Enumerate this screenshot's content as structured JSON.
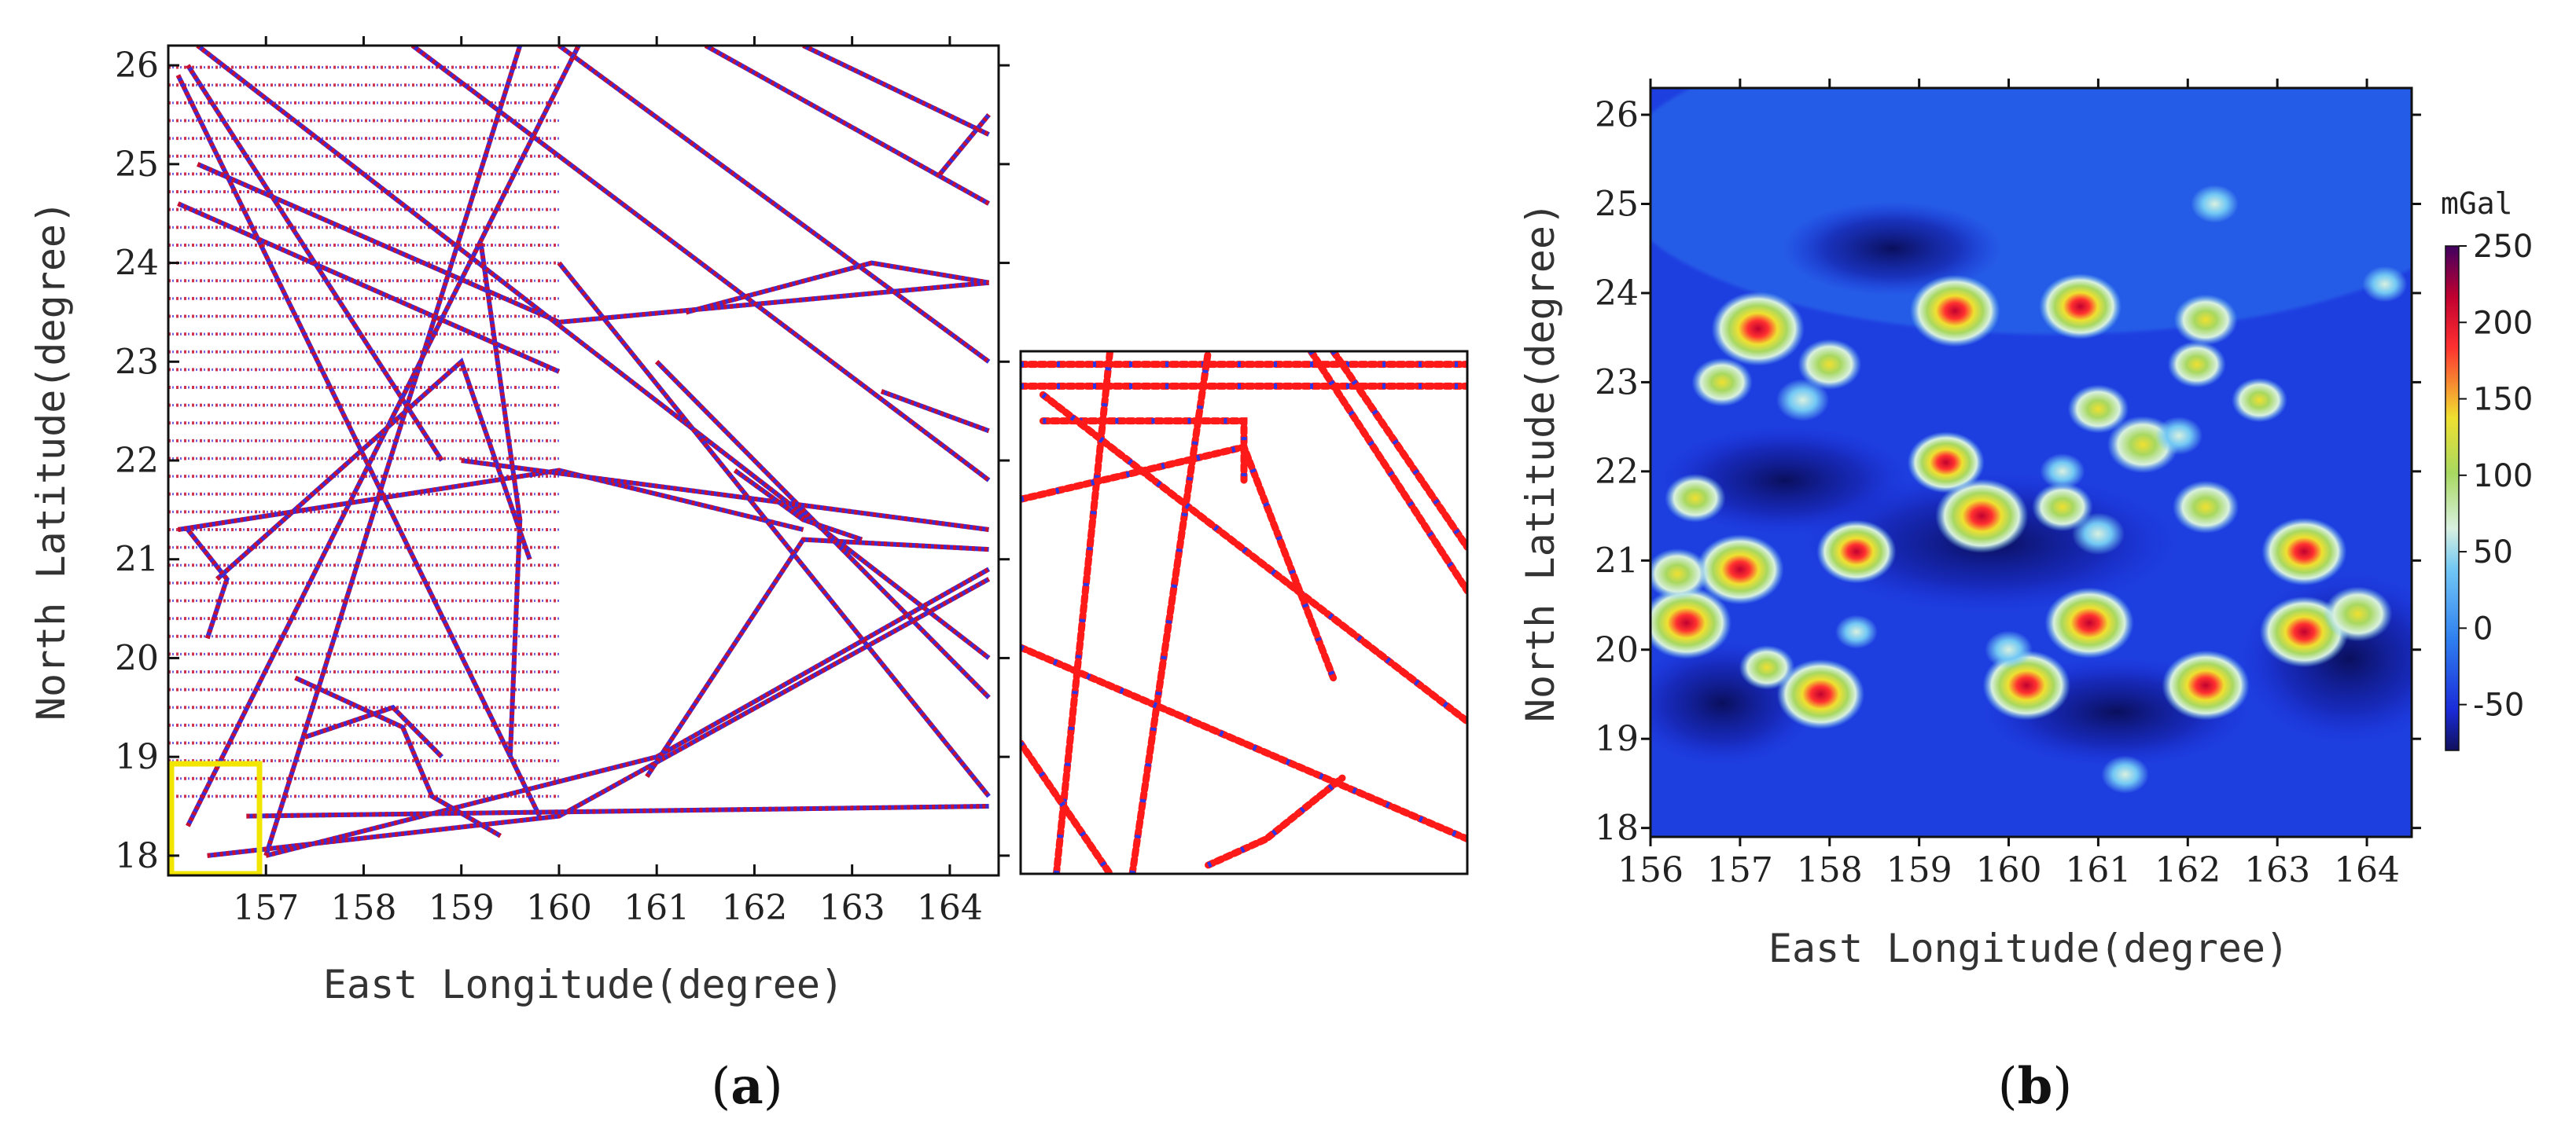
{
  "chart_data": [
    {
      "panel": "a",
      "panel_label_open": "(",
      "panel_label_letter": "a",
      "panel_label_close": ")",
      "type": "scatter",
      "xlabel": "East Longitude(degree)",
      "ylabel": "North Latitude(degree)",
      "xlim": [
        156.0,
        164.5
      ],
      "ylim": [
        17.8,
        26.2
      ],
      "xticks": [
        157,
        158,
        159,
        160,
        161,
        162,
        163,
        164
      ],
      "yticks": [
        18,
        19,
        20,
        21,
        22,
        23,
        24,
        25,
        26
      ],
      "grid": false,
      "colors": {
        "track": "#c8102e",
        "track_star": "#3b2bd6",
        "highlight": "#f2e600"
      },
      "series": [
        {
          "values": [
            [
              156.1,
              25.9
            ],
            [
              159.8,
              18.4
            ]
          ]
        },
        {
          "values": [
            [
              156.2,
              18.3
            ],
            [
              160.2,
              26.2
            ]
          ]
        },
        {
          "values": [
            [
              157.0,
              18.0
            ],
            [
              159.6,
              26.2
            ]
          ]
        },
        {
          "values": [
            [
              156.1,
              24.6
            ],
            [
              160.0,
              22.9
            ]
          ]
        },
        {
          "values": [
            [
              156.2,
              26.0
            ],
            [
              158.8,
              22.0
            ]
          ]
        },
        {
          "values": [
            [
              156.5,
              20.8
            ],
            [
              159.0,
              23.0
            ],
            [
              159.7,
              21.0
            ]
          ]
        },
        {
          "values": [
            [
              156.3,
              25.0
            ],
            [
              160.0,
              23.4
            ],
            [
              164.4,
              23.8
            ]
          ]
        },
        {
          "values": [
            [
              159.2,
              24.2
            ],
            [
              159.6,
              21.4
            ],
            [
              159.5,
              19.0
            ]
          ]
        },
        {
          "values": [
            [
              157.3,
              19.8
            ],
            [
              158.4,
              19.3
            ],
            [
              158.7,
              18.6
            ],
            [
              159.4,
              18.2
            ]
          ]
        },
        {
          "values": [
            [
              156.4,
              18.0
            ],
            [
              160.0,
              18.4
            ],
            [
              164.4,
              20.8
            ]
          ]
        },
        {
          "values": [
            [
              157.0,
              18.0
            ],
            [
              161.0,
              19.0
            ],
            [
              164.4,
              20.9
            ]
          ]
        },
        {
          "values": [
            [
              160.9,
              18.8
            ],
            [
              162.5,
              21.2
            ],
            [
              164.4,
              21.1
            ]
          ]
        },
        {
          "values": [
            [
              161.3,
              23.5
            ],
            [
              163.2,
              24.0
            ],
            [
              164.4,
              23.8
            ]
          ]
        },
        {
          "values": [
            [
              156.3,
              26.2
            ],
            [
              164.4,
              20.0
            ]
          ]
        },
        {
          "values": [
            [
              158.5,
              26.2
            ],
            [
              164.4,
              21.8
            ]
          ]
        },
        {
          "values": [
            [
              160.0,
              26.2
            ],
            [
              164.4,
              23.0
            ]
          ]
        },
        {
          "values": [
            [
              161.5,
              26.2
            ],
            [
              164.4,
              24.6
            ]
          ]
        },
        {
          "values": [
            [
              162.5,
              26.2
            ],
            [
              164.4,
              25.3
            ]
          ]
        },
        {
          "values": [
            [
              156.1,
              21.3
            ],
            [
              160.0,
              21.9
            ],
            [
              162.5,
              21.3
            ]
          ]
        },
        {
          "values": [
            [
              160.0,
              24.0
            ],
            [
              164.4,
              18.6
            ]
          ]
        },
        {
          "values": [
            [
              161.0,
              23.0
            ],
            [
              164.4,
              19.6
            ]
          ]
        },
        {
          "values": [
            [
              159.0,
              22.0
            ],
            [
              164.4,
              21.3
            ]
          ]
        },
        {
          "values": [
            [
              163.3,
              22.7
            ],
            [
              164.4,
              22.3
            ]
          ]
        },
        {
          "values": [
            [
              163.9,
              24.9
            ],
            [
              164.4,
              25.5
            ]
          ]
        },
        {
          "values": [
            [
              161.8,
              21.9
            ],
            [
              162.5,
              21.4
            ],
            [
              162.8,
              21.3
            ],
            [
              163.1,
              21.2
            ]
          ]
        },
        {
          "values": [
            [
              156.4,
              20.2
            ],
            [
              156.6,
              20.8
            ],
            [
              156.2,
              21.3
            ]
          ]
        },
        {
          "values": [
            [
              157.4,
              19.2
            ],
            [
              158.3,
              19.5
            ],
            [
              158.8,
              19.0
            ]
          ]
        },
        {
          "values": [
            [
              156.8,
              18.4
            ],
            [
              164.4,
              18.5
            ]
          ]
        }
      ]
    },
    {
      "panel": "inset",
      "type": "scatter",
      "note_source": "zoom of highlighted box in (a)",
      "xlim": [
        156.0,
        157.0
      ],
      "ylim": [
        17.8,
        19.0
      ],
      "series": [
        {
          "values": [
            [
              156.0,
              18.97
            ],
            [
              157.0,
              18.97
            ]
          ]
        },
        {
          "values": [
            [
              156.0,
              18.92
            ],
            [
              157.0,
              18.92
            ]
          ]
        },
        {
          "values": [
            [
              156.05,
              18.84
            ],
            [
              156.5,
              18.84
            ],
            [
              156.5,
              18.7
            ]
          ]
        },
        {
          "values": [
            [
              156.08,
              17.8
            ],
            [
              156.2,
              19.0
            ]
          ]
        },
        {
          "values": [
            [
              156.25,
              17.8
            ],
            [
              156.42,
              19.0
            ]
          ]
        },
        {
          "values": [
            [
              156.05,
              18.9
            ],
            [
              157.0,
              18.15
            ]
          ]
        },
        {
          "values": [
            [
              156.0,
              18.66
            ],
            [
              156.5,
              18.78
            ],
            [
              156.7,
              18.25
            ]
          ]
        },
        {
          "values": [
            [
              156.7,
              19.0
            ],
            [
              157.0,
              18.55
            ]
          ]
        },
        {
          "values": [
            [
              156.65,
              19.0
            ],
            [
              157.0,
              18.45
            ]
          ]
        },
        {
          "values": [
            [
              156.0,
              18.32
            ],
            [
              157.0,
              17.88
            ]
          ]
        },
        {
          "values": [
            [
              156.0,
              18.1
            ],
            [
              156.2,
              17.8
            ]
          ]
        },
        {
          "values": [
            [
              156.42,
              17.82
            ],
            [
              156.55,
              17.88
            ],
            [
              156.72,
              18.02
            ]
          ]
        }
      ]
    },
    {
      "panel": "b",
      "panel_label_open": "(",
      "panel_label_letter": "b",
      "panel_label_close": ")",
      "type": "heatmap",
      "xlabel": "East Longitude(degree)",
      "ylabel": "North Latitude(degree)",
      "xlim": [
        156.0,
        164.5
      ],
      "ylim": [
        17.9,
        26.3
      ],
      "xticks": [
        156,
        157,
        158,
        159,
        160,
        161,
        162,
        163,
        164
      ],
      "yticks": [
        18,
        19,
        20,
        21,
        22,
        23,
        24,
        25,
        26
      ],
      "grid": false,
      "colorbar": {
        "unit": "mGal",
        "min": -80,
        "max": 250,
        "ticks": [
          250,
          200,
          150,
          100,
          50,
          0,
          -50
        ],
        "colors": [
          "#10105a",
          "#1a2bd8",
          "#2f7ff0",
          "#72c8f4",
          "#d8f0e0",
          "#a8d860",
          "#f0e030",
          "#ff3030",
          "#c00030",
          "#400060"
        ]
      },
      "values": [
        [
          157.2,
          23.6,
          230
        ],
        [
          159.4,
          23.8,
          220
        ],
        [
          160.8,
          23.85,
          190
        ],
        [
          162.2,
          23.7,
          120
        ],
        [
          156.8,
          23.0,
          110
        ],
        [
          158.0,
          23.2,
          120
        ],
        [
          161.0,
          22.7,
          110
        ],
        [
          161.5,
          22.3,
          150
        ],
        [
          162.2,
          21.6,
          130
        ],
        [
          156.5,
          21.7,
          110
        ],
        [
          159.3,
          22.1,
          170
        ],
        [
          159.7,
          21.5,
          230
        ],
        [
          158.3,
          21.1,
          180
        ],
        [
          157.0,
          20.9,
          210
        ],
        [
          156.4,
          20.3,
          220
        ],
        [
          157.9,
          19.5,
          210
        ],
        [
          160.2,
          19.6,
          210
        ],
        [
          160.9,
          20.3,
          215
        ],
        [
          162.2,
          19.6,
          210
        ],
        [
          163.3,
          20.2,
          215
        ],
        [
          163.3,
          21.1,
          200
        ],
        [
          163.9,
          20.4,
          140
        ],
        [
          160.6,
          21.6,
          110
        ],
        [
          161.0,
          21.3,
          80
        ],
        [
          162.8,
          22.8,
          90
        ],
        [
          161.9,
          22.4,
          60
        ],
        [
          157.3,
          19.8,
          90
        ],
        [
          156.3,
          20.85,
          120
        ],
        [
          162.1,
          23.2,
          100
        ],
        [
          157.7,
          22.8,
          80
        ],
        [
          160.0,
          20.0,
          60
        ],
        [
          161.3,
          18.6,
          60
        ],
        [
          162.3,
          25.0,
          60
        ],
        [
          164.2,
          24.1,
          50
        ],
        [
          158.3,
          20.2,
          40
        ],
        [
          160.6,
          22.0,
          50
        ]
      ]
    }
  ]
}
